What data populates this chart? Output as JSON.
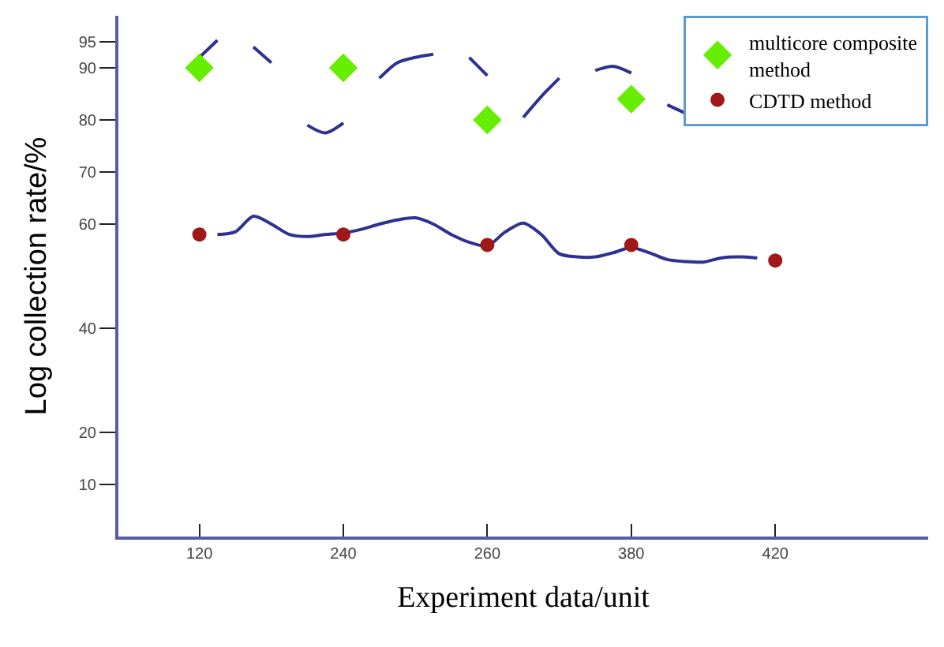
{
  "chart_data": {
    "type": "scatter",
    "xlabel": "Experiment data/unit",
    "ylabel": "Log collection rate/%",
    "categories": [
      null,
      null,
      null,
      null,
      "120",
      null,
      null,
      null,
      null,
      null,
      null,
      null,
      "240",
      null,
      null,
      null,
      null,
      null,
      null,
      null,
      "260",
      null,
      null,
      null,
      null,
      null,
      null,
      null,
      "380",
      null,
      null,
      null,
      null,
      null,
      null,
      null,
      "420",
      null,
      null,
      null,
      null,
      null,
      null,
      null,
      null
    ],
    "ylim": [
      0,
      100
    ],
    "yticks": [
      10,
      20,
      40,
      60,
      70,
      80,
      90,
      95
    ],
    "legend": "top right",
    "series": [
      {
        "type": "line",
        "color": "#2e3192",
        "marker": "none",
        "values": [
          null,
          null,
          null,
          null,
          92,
          95.3,
          null,
          94,
          91,
          null,
          79,
          77.5,
          79.4,
          null,
          88,
          91,
          92,
          92.6,
          null,
          92,
          88.5,
          null,
          80.5,
          84.5,
          88,
          null,
          89.5,
          90.3,
          89,
          null,
          82.9,
          81.3,
          null,
          null,
          null,
          null,
          null,
          null,
          null,
          null,
          null,
          null,
          null,
          null,
          null
        ]
      },
      {
        "type": "line",
        "color": "#2e3192",
        "marker": "none",
        "values": [
          null,
          null,
          null,
          null,
          null,
          58,
          58.5,
          61.5,
          60,
          58,
          57.6,
          58,
          58.3,
          59,
          60,
          60.8,
          61.2,
          60,
          58,
          56.5,
          55.8,
          58.5,
          60.2,
          58,
          54.3,
          53.7,
          53.7,
          54.5,
          55.5,
          54.5,
          53.2,
          52.8,
          52.7,
          53.5,
          53.7,
          53.5,
          null,
          null,
          null,
          null,
          null,
          null,
          null,
          null,
          null
        ]
      },
      {
        "name": "multicore composite method",
        "color": "#66ee00",
        "marker": "diamond",
        "values": [
          null,
          null,
          null,
          null,
          90,
          null,
          null,
          null,
          null,
          null,
          null,
          null,
          90,
          null,
          null,
          null,
          null,
          null,
          null,
          null,
          80,
          null,
          null,
          null,
          null,
          null,
          null,
          null,
          84,
          null,
          null,
          null,
          null,
          null,
          null,
          null,
          null,
          null,
          null,
          null,
          null,
          null,
          null,
          null,
          null
        ]
      },
      {
        "name": "CDTD method",
        "color": "#a01818",
        "marker": "circle",
        "values": [
          null,
          null,
          null,
          null,
          58,
          null,
          null,
          null,
          null,
          null,
          null,
          null,
          58,
          null,
          null,
          null,
          null,
          null,
          null,
          null,
          56,
          null,
          null,
          null,
          null,
          null,
          null,
          null,
          56,
          null,
          null,
          null,
          null,
          null,
          null,
          null,
          53,
          null,
          null,
          null,
          null,
          null,
          null,
          null,
          null
        ]
      }
    ]
  }
}
